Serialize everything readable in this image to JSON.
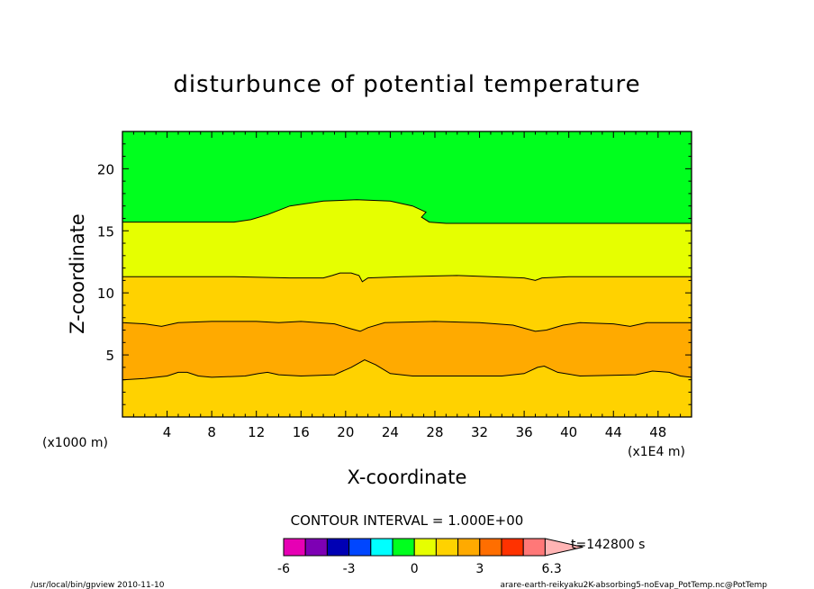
{
  "chart_data": {
    "type": "contour",
    "title": "disturbunce of potential temperature",
    "xlabel": "X-coordinate",
    "ylabel": "Z-coordinate",
    "x_unit": "(x1E4 m)",
    "z_unit": "(x1000 m)",
    "xlim": [
      0,
      51
    ],
    "ylim": [
      0,
      23
    ],
    "x_ticks": [
      4,
      8,
      12,
      16,
      20,
      24,
      28,
      32,
      36,
      40,
      44,
      48
    ],
    "y_ticks": [
      5,
      10,
      15,
      20
    ],
    "contour_interval_text": "CONTOUR INTERVAL = 1.000E+00",
    "time_text": "t=142800 s",
    "colorbar": {
      "colors": [
        "#e600b4",
        "#7d00b4",
        "#0000b4",
        "#0046ff",
        "#00ffff",
        "#00ff1e",
        "#e6ff00",
        "#ffd200",
        "#ffaa00",
        "#ff6e00",
        "#ff3200",
        "#ff7878",
        "#ffb4b4"
      ],
      "tick_labels": [
        "-6",
        "-3",
        "0",
        "3",
        "6.3"
      ],
      "tick_values": [
        -6,
        -3,
        0,
        3,
        6.3
      ],
      "min": -6,
      "max": 6.3
    },
    "bands": [
      {
        "name": "0 to 1",
        "color": "#00ff1e"
      },
      {
        "name": "1 to 2",
        "color": "#e6ff00"
      },
      {
        "name": "2 to 3",
        "color": "#ffd200"
      },
      {
        "name": "3 to 4",
        "color": "#ffaa00"
      },
      {
        "name": "2 to 3 (lower)",
        "color": "#ffd200"
      }
    ],
    "contours": [
      {
        "name": "contour-top",
        "points": [
          [
            0,
            15.7
          ],
          [
            10,
            15.7
          ],
          [
            11.5,
            15.9
          ],
          [
            13,
            16.3
          ],
          [
            15,
            17.0
          ],
          [
            18,
            17.4
          ],
          [
            21,
            17.5
          ],
          [
            24,
            17.4
          ],
          [
            26,
            17.0
          ],
          [
            27.2,
            16.5
          ],
          [
            26.8,
            16.1
          ],
          [
            27.5,
            15.7
          ],
          [
            29,
            15.6
          ],
          [
            35,
            15.6
          ],
          [
            51,
            15.6
          ]
        ]
      },
      {
        "name": "contour-upper",
        "points": [
          [
            0,
            11.3
          ],
          [
            10,
            11.3
          ],
          [
            15,
            11.2
          ],
          [
            18,
            11.2
          ],
          [
            18.8,
            11.4
          ],
          [
            19.5,
            11.6
          ],
          [
            20.5,
            11.6
          ],
          [
            21.2,
            11.4
          ],
          [
            21.5,
            10.9
          ],
          [
            22,
            11.2
          ],
          [
            25,
            11.3
          ],
          [
            30,
            11.4
          ],
          [
            36,
            11.2
          ],
          [
            37,
            11.0
          ],
          [
            37.6,
            11.2
          ],
          [
            40,
            11.3
          ],
          [
            51,
            11.3
          ]
        ]
      },
      {
        "name": "contour-middle",
        "points": [
          [
            0,
            7.6
          ],
          [
            2,
            7.5
          ],
          [
            3.5,
            7.3
          ],
          [
            5,
            7.6
          ],
          [
            8,
            7.7
          ],
          [
            12,
            7.7
          ],
          [
            14,
            7.6
          ],
          [
            16,
            7.7
          ],
          [
            19,
            7.5
          ],
          [
            20.5,
            7.1
          ],
          [
            21.3,
            6.9
          ],
          [
            22,
            7.2
          ],
          [
            23.5,
            7.6
          ],
          [
            28,
            7.7
          ],
          [
            32,
            7.6
          ],
          [
            35,
            7.4
          ],
          [
            37,
            6.9
          ],
          [
            38,
            7.0
          ],
          [
            39.5,
            7.4
          ],
          [
            41,
            7.6
          ],
          [
            44,
            7.5
          ],
          [
            45.5,
            7.3
          ],
          [
            47,
            7.6
          ],
          [
            51,
            7.6
          ]
        ]
      },
      {
        "name": "contour-lower",
        "points": [
          [
            0,
            3.0
          ],
          [
            2,
            3.1
          ],
          [
            4,
            3.3
          ],
          [
            5,
            3.6
          ],
          [
            5.8,
            3.6
          ],
          [
            6.8,
            3.3
          ],
          [
            8,
            3.2
          ],
          [
            11,
            3.3
          ],
          [
            12.2,
            3.5
          ],
          [
            13,
            3.6
          ],
          [
            14,
            3.4
          ],
          [
            16,
            3.3
          ],
          [
            19,
            3.4
          ],
          [
            20.5,
            4.0
          ],
          [
            21.7,
            4.6
          ],
          [
            22.7,
            4.2
          ],
          [
            24,
            3.5
          ],
          [
            26,
            3.3
          ],
          [
            34,
            3.3
          ],
          [
            36,
            3.5
          ],
          [
            37.2,
            4.0
          ],
          [
            37.8,
            4.1
          ],
          [
            39,
            3.6
          ],
          [
            41,
            3.3
          ],
          [
            46,
            3.4
          ],
          [
            47.5,
            3.7
          ],
          [
            49,
            3.6
          ],
          [
            50,
            3.3
          ],
          [
            51,
            3.2
          ]
        ]
      }
    ]
  },
  "footer": {
    "left": "/usr/local/bin/gpview  2010-11-10",
    "right": "arare-earth-reikyaku2K-absorbing5-noEvap_PotTemp.nc@PotTemp"
  }
}
